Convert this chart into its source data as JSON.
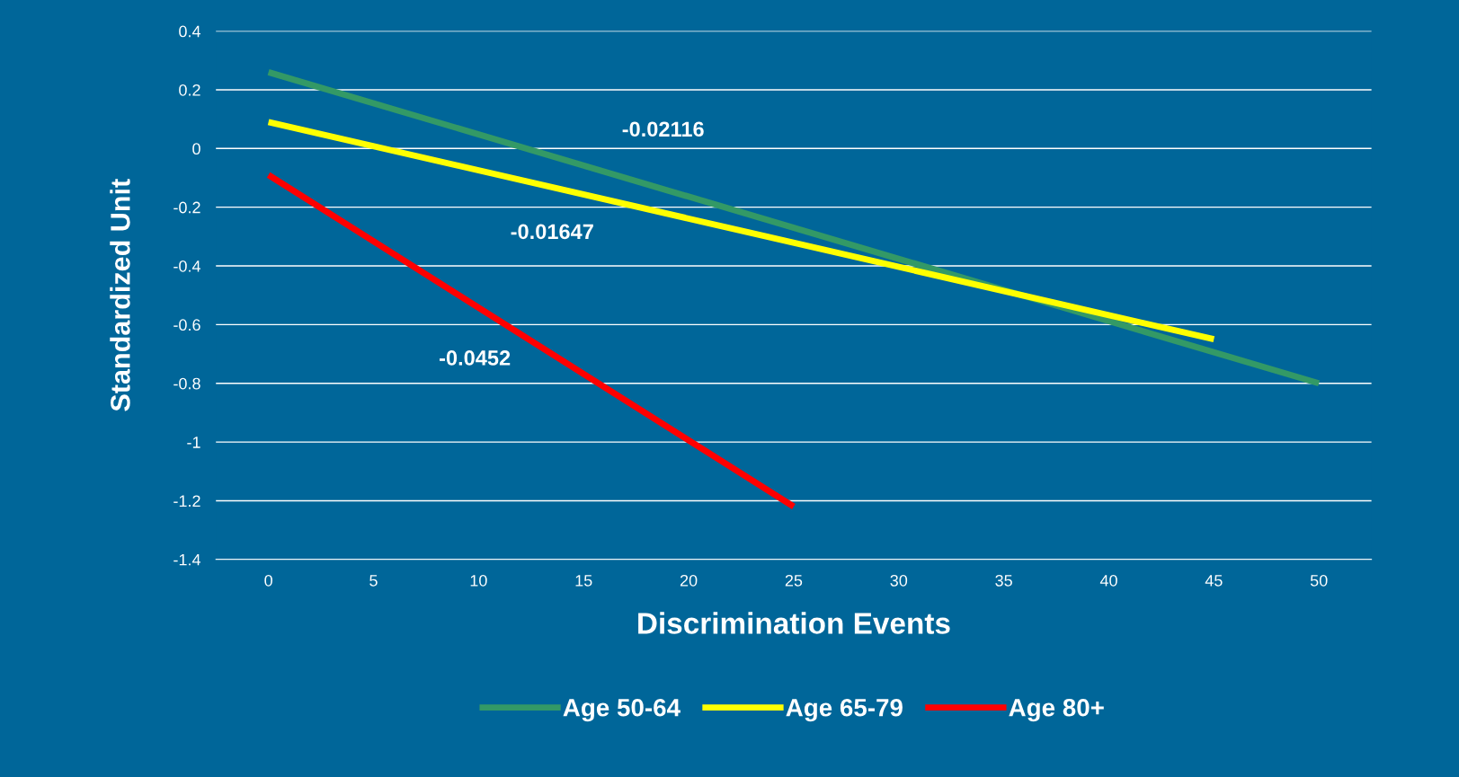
{
  "chart_data": {
    "type": "line",
    "xlabel": "Discrimination Events",
    "ylabel": "Standardized Unit",
    "xlim": [
      -2.5,
      52.5
    ],
    "xticks": [
      0,
      5,
      10,
      15,
      20,
      25,
      30,
      35,
      40,
      45,
      50
    ],
    "ylim": [
      -1.4,
      0.4
    ],
    "yticks": [
      -1.4,
      -1.2,
      -1,
      -0.8,
      -0.6,
      -0.4,
      -0.2,
      0,
      0.2,
      0.4
    ],
    "grid": "y",
    "legend": "bottom",
    "marker": "none",
    "line_style": "solid",
    "series": [
      {
        "name": "Age 50-64",
        "color": "#339966",
        "x": [
          0,
          50
        ],
        "values": [
          0.26,
          -0.8
        ]
      },
      {
        "name": "Age 65-79",
        "color": "#ffff00",
        "x": [
          0,
          45
        ],
        "values": [
          0.09,
          -0.65
        ]
      },
      {
        "name": "Age 80+",
        "color": "#ff0000",
        "x": [
          0,
          25
        ],
        "values": [
          -0.09,
          -1.22
        ]
      }
    ],
    "annotations": [
      "-0.02116",
      "-0.01647",
      "-0.0452"
    ]
  }
}
